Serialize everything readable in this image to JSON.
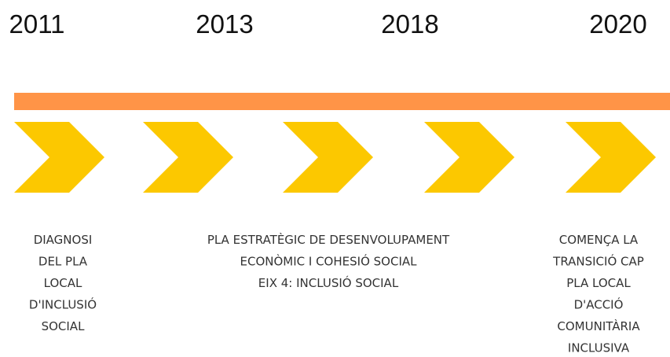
{
  "years": [
    "2011",
    "2013",
    "2018",
    "2020"
  ],
  "milestones": [
    {
      "lines": [
        "DIAGNOSI",
        "DEL PLA",
        "LOCAL",
        "D'INCLUSIÓ",
        "SOCIAL"
      ]
    },
    {
      "lines": [
        "PLA ESTRATÈGIC DE DESENVOLUPAMENT",
        "ECONÒMIC I COHESIÓ SOCIAL",
        "EIX 4: INCLUSIÓ SOCIAL"
      ]
    },
    {
      "lines": [
        "COMENÇA LA",
        "TRANSICIÓ CAP",
        "PLA LOCAL",
        "D'ACCIÓ",
        "COMUNITÀRIA",
        "INCLUSIVA"
      ]
    }
  ]
}
